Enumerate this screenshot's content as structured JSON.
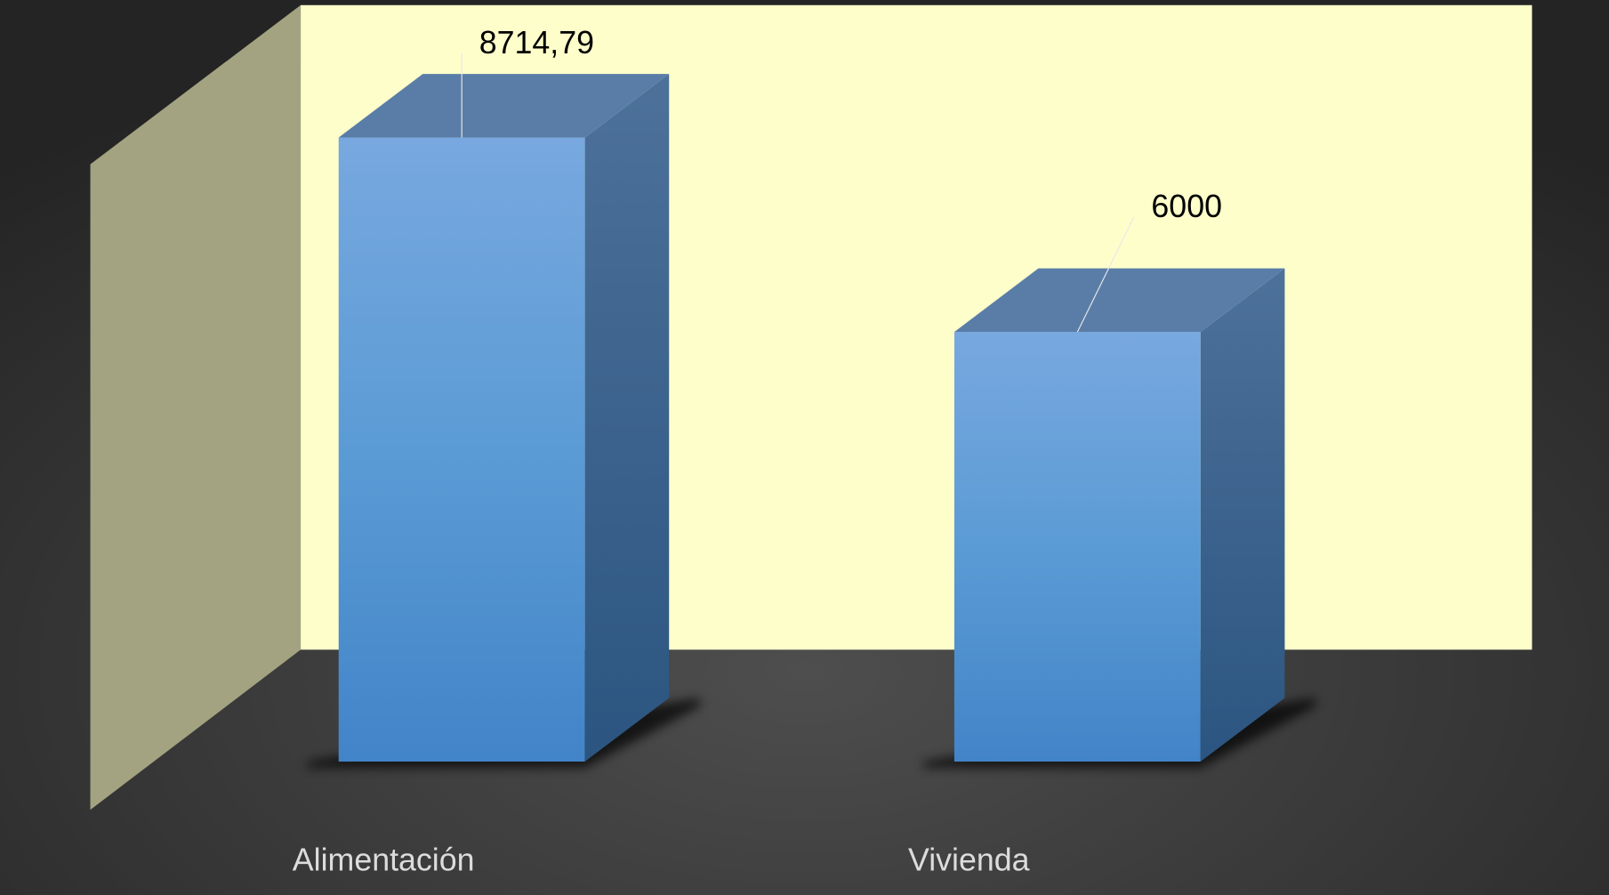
{
  "chart_data": {
    "type": "bar",
    "categories": [
      "Alimentación",
      "Vivienda"
    ],
    "values": [
      8714.79,
      6000
    ],
    "value_labels": [
      "8714,79",
      "6000"
    ],
    "color": "#5b9bd5"
  }
}
